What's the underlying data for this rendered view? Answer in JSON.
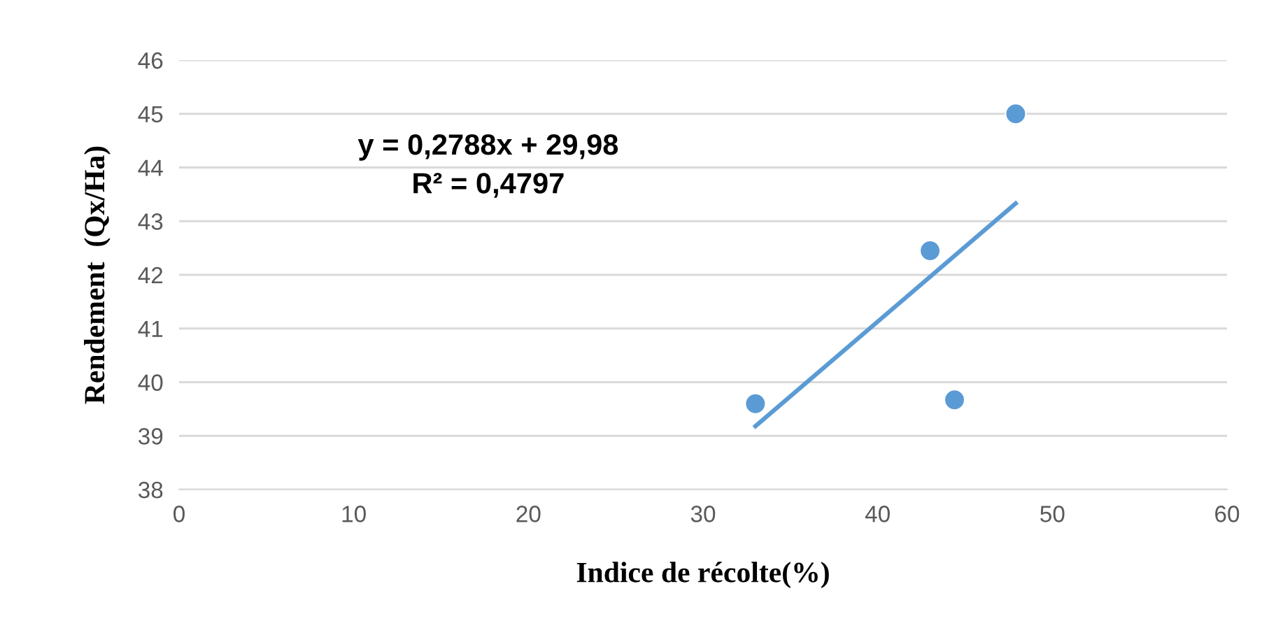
{
  "chart_data": {
    "type": "scatter",
    "xlabel": "Indice de récolte(%)",
    "ylabel": "Rendement  (Qx/Ha)",
    "xlim": [
      0,
      60
    ],
    "xticks": [
      0,
      10,
      20,
      30,
      40,
      50,
      60
    ],
    "ylim": [
      38,
      46
    ],
    "yticks": [
      38,
      39,
      40,
      41,
      42,
      43,
      44,
      45,
      46
    ],
    "grid": "y",
    "marker": "circle",
    "legend": false,
    "annotations": [
      "y = 0,2788x + 29,98",
      "R² = 0,4797"
    ],
    "series": [
      {
        "color": "#5b9bd5",
        "x": [
          33,
          43,
          44.4,
          47.9
        ],
        "values": [
          39.6,
          42.45,
          39.67,
          45.0
        ]
      },
      {
        "type": "line",
        "color": "#5b9bd5",
        "marker": "none",
        "x": [
          33,
          47.9
        ],
        "values": [
          39.18,
          43.33
        ]
      }
    ]
  }
}
